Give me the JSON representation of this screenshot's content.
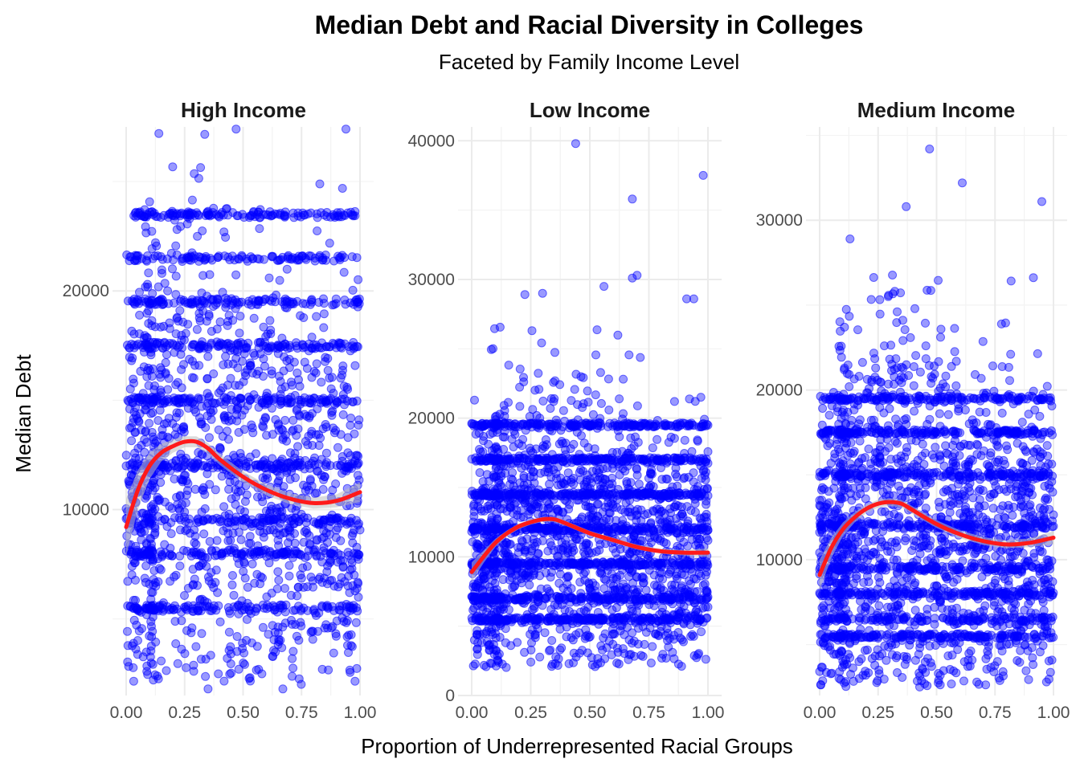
{
  "chart_data": {
    "type": "scatter",
    "title": "Median Debt and Racial Diversity in Colleges",
    "subtitle": "Faceted by Family Income Level",
    "xlabel": "Proportion of Underrepresented Racial Groups",
    "ylabel": "Median Debt",
    "grid": true,
    "legend": "none",
    "colors": {
      "points": "#0000ff",
      "smooth": "#ff1a1a",
      "ribbon": "#bdbdbd"
    },
    "xlim": [
      0,
      1
    ],
    "x_ticks": [
      "0.00",
      "0.25",
      "0.50",
      "0.75",
      "1.00"
    ],
    "facets": [
      {
        "label": "High Income",
        "ylim": [
          1500,
          27500
        ],
        "y_ticks": [
          10000,
          20000
        ],
        "y_tick_labels": [
          "10000",
          "20000"
        ],
        "n_points": 2400,
        "band_levels": [
          5500,
          8000,
          9500,
          12000,
          15000,
          17500,
          19500,
          21500,
          23500
        ],
        "point_range": [
          2000,
          27500
        ],
        "notable_points": [
          {
            "x": 0.14,
            "y": 27200
          },
          {
            "x": 0.47,
            "y": 27400
          },
          {
            "x": 0.94,
            "y": 27400
          },
          {
            "x": 0.35,
            "y": 1800
          },
          {
            "x": 0.67,
            "y": 1800
          },
          {
            "x": 0.0,
            "y": 12000
          }
        ],
        "smooth": {
          "x": [
            0,
            0.05,
            0.1,
            0.15,
            0.2,
            0.25,
            0.3,
            0.35,
            0.4,
            0.5,
            0.6,
            0.7,
            0.8,
            0.9,
            1.0
          ],
          "y": [
            9200,
            10900,
            12000,
            12600,
            12900,
            13100,
            13100,
            12800,
            12300,
            11500,
            10900,
            10500,
            10300,
            10400,
            10800
          ],
          "se": [
            1300,
            900,
            600,
            400,
            300,
            250,
            250,
            250,
            250,
            250,
            250,
            250,
            250,
            300,
            450
          ]
        }
      },
      {
        "label": "Low Income",
        "ylim": [
          0,
          41000
        ],
        "y_ticks": [
          0,
          10000,
          20000,
          30000,
          40000
        ],
        "y_tick_labels": [
          "0",
          "10000",
          "20000",
          "30000",
          "40000"
        ],
        "n_points": 3000,
        "band_levels": [
          5500,
          7000,
          9500,
          12000,
          14500,
          17000,
          19500
        ],
        "point_range": [
          2000,
          29000
        ],
        "notable_points": [
          {
            "x": 0.44,
            "y": 39800
          },
          {
            "x": 0.98,
            "y": 37500
          },
          {
            "x": 0.68,
            "y": 35800
          },
          {
            "x": 0.68,
            "y": 30100
          },
          {
            "x": 0.7,
            "y": 30300
          },
          {
            "x": 0.91,
            "y": 28600
          },
          {
            "x": 0.94,
            "y": 28600
          },
          {
            "x": 0.56,
            "y": 29500
          },
          {
            "x": 0.3,
            "y": 29000
          }
        ],
        "smooth": {
          "x": [
            0,
            0.05,
            0.1,
            0.15,
            0.2,
            0.25,
            0.3,
            0.35,
            0.4,
            0.5,
            0.6,
            0.7,
            0.8,
            0.9,
            1.0
          ],
          "y": [
            8900,
            10000,
            11000,
            11700,
            12200,
            12500,
            12700,
            12700,
            12400,
            11700,
            11200,
            10700,
            10400,
            10300,
            10300
          ],
          "se": [
            700,
            450,
            300,
            220,
            200,
            180,
            180,
            180,
            180,
            180,
            180,
            180,
            180,
            200,
            300
          ]
        }
      },
      {
        "label": "Medium Income",
        "ylim": [
          2000,
          35500
        ],
        "y_ticks": [
          10000,
          20000,
          30000
        ],
        "y_tick_labels": [
          "10000",
          "20000",
          "30000"
        ],
        "n_points": 2800,
        "band_levels": [
          5500,
          6500,
          8000,
          9500,
          12000,
          15000,
          17500,
          19500
        ],
        "point_range": [
          2500,
          28000
        ],
        "notable_points": [
          {
            "x": 0.47,
            "y": 34200
          },
          {
            "x": 0.61,
            "y": 32200
          },
          {
            "x": 0.95,
            "y": 31100
          },
          {
            "x": 0.37,
            "y": 30800
          },
          {
            "x": 0.13,
            "y": 28900
          },
          {
            "x": 0.0,
            "y": 13500
          },
          {
            "x": 0.97,
            "y": 2800
          }
        ],
        "smooth": {
          "x": [
            0,
            0.05,
            0.1,
            0.15,
            0.2,
            0.25,
            0.3,
            0.35,
            0.4,
            0.5,
            0.6,
            0.7,
            0.8,
            0.9,
            1.0
          ],
          "y": [
            9100,
            10700,
            11800,
            12500,
            13000,
            13300,
            13400,
            13300,
            12900,
            12100,
            11500,
            11100,
            10900,
            11000,
            11300
          ],
          "se": [
            900,
            600,
            400,
            300,
            250,
            230,
            230,
            230,
            230,
            230,
            230,
            230,
            230,
            260,
            380
          ]
        }
      }
    ]
  }
}
